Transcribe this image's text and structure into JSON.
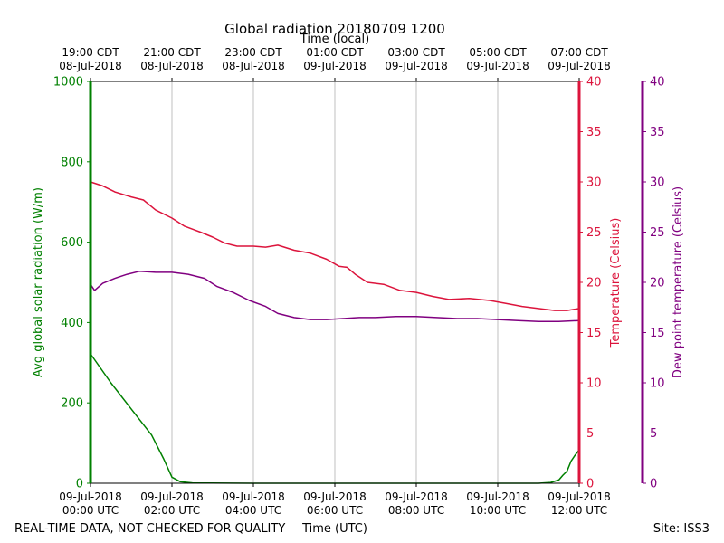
{
  "chart_data": {
    "type": "line",
    "title": "Global radiation 20180709 1200",
    "top_axis_label": "Time (local)",
    "xlabel": "Time (UTC)",
    "ylabel_left": "Avg global solar radiation (W/m)",
    "ylabel_right": "Temperature (Celsius)",
    "ylabel_far_right": "Dew point temperature (Celsius)",
    "footer_left": "REAL-TIME DATA, NOT CHECKED FOR QUALITY",
    "footer_right": "Site: ISS3",
    "x_unit": "hours since 09-Jul-2018 00:00 UTC",
    "xlim": [
      0,
      12
    ],
    "grid": "vertical",
    "bottom_ticks": [
      {
        "x": 0,
        "line1": "09-Jul-2018",
        "line2": "00:00 UTC"
      },
      {
        "x": 2,
        "line1": "09-Jul-2018",
        "line2": "02:00 UTC"
      },
      {
        "x": 4,
        "line1": "09-Jul-2018",
        "line2": "04:00 UTC"
      },
      {
        "x": 6,
        "line1": "09-Jul-2018",
        "line2": "06:00 UTC"
      },
      {
        "x": 8,
        "line1": "09-Jul-2018",
        "line2": "08:00 UTC"
      },
      {
        "x": 10,
        "line1": "09-Jul-2018",
        "line2": "10:00 UTC"
      },
      {
        "x": 12,
        "line1": "09-Jul-2018",
        "line2": "12:00 UTC"
      }
    ],
    "top_ticks": [
      {
        "x": 0,
        "line1": "19:00 CDT",
        "line2": "08-Jul-2018"
      },
      {
        "x": 2,
        "line1": "21:00 CDT",
        "line2": "08-Jul-2018"
      },
      {
        "x": 4,
        "line1": "23:00 CDT",
        "line2": "08-Jul-2018"
      },
      {
        "x": 6,
        "line1": "01:00 CDT",
        "line2": "09-Jul-2018"
      },
      {
        "x": 8,
        "line1": "03:00 CDT",
        "line2": "09-Jul-2018"
      },
      {
        "x": 10,
        "line1": "05:00 CDT",
        "line2": "09-Jul-2018"
      },
      {
        "x": 12,
        "line1": "07:00 CDT",
        "line2": "09-Jul-2018"
      }
    ],
    "axes": {
      "radiation": {
        "min": 0,
        "max": 1000,
        "ticks": [
          0,
          200,
          400,
          600,
          800,
          1000
        ],
        "color": "#008000"
      },
      "temperature": {
        "min": 0,
        "max": 40,
        "ticks": [
          0,
          5,
          10,
          15,
          20,
          25,
          30,
          35,
          40
        ],
        "color": "#dc143c"
      },
      "dewpoint": {
        "min": 0,
        "max": 40,
        "ticks": [
          0,
          5,
          10,
          15,
          20,
          25,
          30,
          35,
          40
        ],
        "color": "#800080"
      }
    },
    "series": [
      {
        "key": "radiation",
        "color": "#008000",
        "axis": "radiation",
        "points": [
          [
            0,
            322
          ],
          [
            0.5,
            250
          ],
          [
            1,
            185
          ],
          [
            1.5,
            120
          ],
          [
            1.8,
            60
          ],
          [
            2,
            15
          ],
          [
            2.2,
            4
          ],
          [
            2.5,
            1
          ],
          [
            4,
            0
          ],
          [
            8,
            0
          ],
          [
            10,
            0
          ],
          [
            11,
            0
          ],
          [
            11.3,
            2
          ],
          [
            11.5,
            8
          ],
          [
            11.6,
            20
          ],
          [
            11.7,
            30
          ],
          [
            11.8,
            55
          ],
          [
            11.9,
            70
          ],
          [
            12,
            83
          ]
        ]
      },
      {
        "key": "temperature",
        "color": "#dc143c",
        "axis": "temperature",
        "points": [
          [
            0,
            30.0
          ],
          [
            0.3,
            29.6
          ],
          [
            0.6,
            29.0
          ],
          [
            1.0,
            28.5
          ],
          [
            1.3,
            28.2
          ],
          [
            1.6,
            27.2
          ],
          [
            2.0,
            26.4
          ],
          [
            2.3,
            25.6
          ],
          [
            2.7,
            25.0
          ],
          [
            3.0,
            24.5
          ],
          [
            3.3,
            23.9
          ],
          [
            3.6,
            23.6
          ],
          [
            4.0,
            23.6
          ],
          [
            4.3,
            23.5
          ],
          [
            4.6,
            23.7
          ],
          [
            5.0,
            23.2
          ],
          [
            5.4,
            22.9
          ],
          [
            5.8,
            22.3
          ],
          [
            6.1,
            21.6
          ],
          [
            6.3,
            21.5
          ],
          [
            6.5,
            20.8
          ],
          [
            6.8,
            20.0
          ],
          [
            7.2,
            19.8
          ],
          [
            7.6,
            19.2
          ],
          [
            8.0,
            19.0
          ],
          [
            8.4,
            18.6
          ],
          [
            8.8,
            18.3
          ],
          [
            9.3,
            18.4
          ],
          [
            9.8,
            18.2
          ],
          [
            10.2,
            17.9
          ],
          [
            10.6,
            17.6
          ],
          [
            11.0,
            17.4
          ],
          [
            11.4,
            17.2
          ],
          [
            11.7,
            17.2
          ],
          [
            12,
            17.4
          ]
        ]
      },
      {
        "key": "dewpoint",
        "color": "#800080",
        "axis": "dewpoint",
        "points": [
          [
            0,
            19.8
          ],
          [
            0.1,
            19.2
          ],
          [
            0.3,
            19.9
          ],
          [
            0.6,
            20.4
          ],
          [
            0.9,
            20.8
          ],
          [
            1.2,
            21.1
          ],
          [
            1.6,
            21.0
          ],
          [
            2.0,
            21.0
          ],
          [
            2.4,
            20.8
          ],
          [
            2.8,
            20.4
          ],
          [
            3.1,
            19.6
          ],
          [
            3.5,
            19.0
          ],
          [
            3.9,
            18.2
          ],
          [
            4.3,
            17.6
          ],
          [
            4.6,
            16.9
          ],
          [
            5.0,
            16.5
          ],
          [
            5.4,
            16.3
          ],
          [
            5.8,
            16.3
          ],
          [
            6.2,
            16.4
          ],
          [
            6.6,
            16.5
          ],
          [
            7.0,
            16.5
          ],
          [
            7.5,
            16.6
          ],
          [
            8.0,
            16.6
          ],
          [
            8.5,
            16.5
          ],
          [
            9.0,
            16.4
          ],
          [
            9.5,
            16.4
          ],
          [
            10.0,
            16.3
          ],
          [
            10.5,
            16.2
          ],
          [
            11.0,
            16.1
          ],
          [
            11.5,
            16.1
          ],
          [
            12,
            16.2
          ]
        ]
      }
    ]
  }
}
